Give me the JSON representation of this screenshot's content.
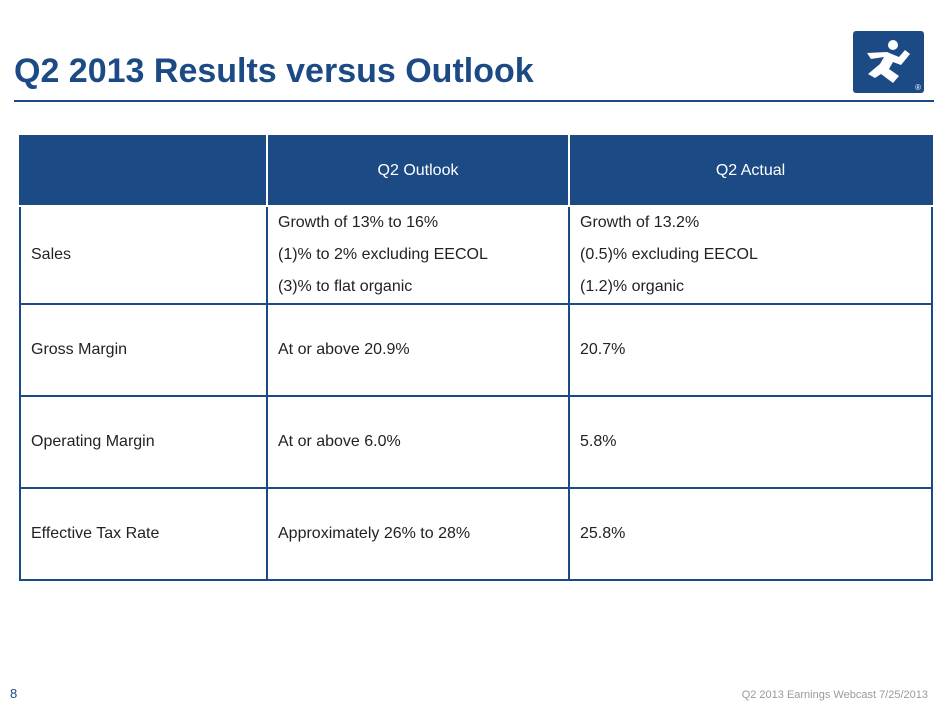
{
  "slide": {
    "title": "Q2 2013 Results versus Outlook",
    "page_number": "8",
    "footer": "Q2 2013 Earnings Webcast 7/25/2013",
    "logo_mark": "®"
  },
  "colors": {
    "brand_blue": "#1c4a85",
    "text": "#222222",
    "footer_gray": "#9a9a9a"
  },
  "icons": {
    "logo": "running-man-logo-icon"
  },
  "table": {
    "headers": [
      "",
      "Q2 Outlook",
      "Q2 Actual"
    ],
    "rows": [
      {
        "metric": "Sales",
        "outlook": [
          "Growth of 13% to 16%",
          "(1)% to 2% excluding EECOL",
          "(3)% to flat organic"
        ],
        "actual": [
          "Growth of 13.2%",
          "(0.5)% excluding EECOL",
          "(1.2)% organic"
        ]
      },
      {
        "metric": "Gross Margin",
        "outlook": [
          "At or above 20.9%"
        ],
        "actual": [
          "20.7%"
        ]
      },
      {
        "metric": "Operating Margin",
        "outlook": [
          "At or above 6.0%"
        ],
        "actual": [
          "5.8%"
        ]
      },
      {
        "metric": "Effective Tax Rate",
        "outlook": [
          "Approximately 26% to 28%"
        ],
        "actual": [
          "25.8%"
        ]
      }
    ]
  }
}
